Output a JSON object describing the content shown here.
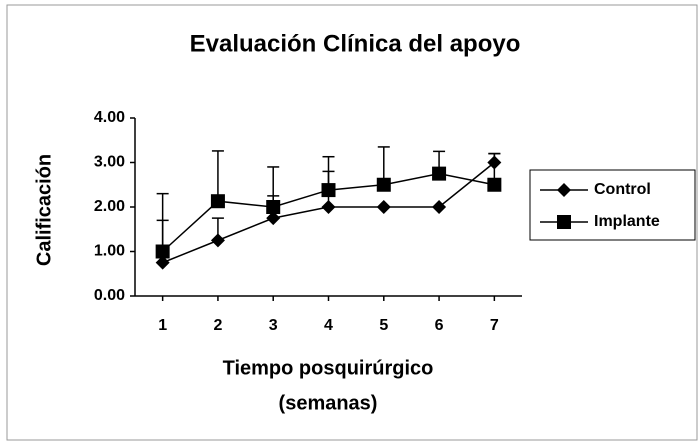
{
  "chart_data": {
    "type": "line",
    "title": "Evaluación Clínica del apoyo",
    "y_label": "Calificación",
    "x_label": [
      "Tiempo posquirúrgico",
      "(semanas)"
    ],
    "categories": [
      "1",
      "2",
      "3",
      "4",
      "5",
      "6",
      "7"
    ],
    "series": [
      {
        "name": "Control",
        "color": "#000000",
        "marker": "diamond",
        "values": [
          0.75,
          1.25,
          1.75,
          2.0,
          2.0,
          2.0,
          3.0
        ],
        "errors": [
          0.95,
          0.5,
          0.5,
          0.8,
          0,
          0,
          0.2
        ]
      },
      {
        "name": "Implante",
        "color": "#000000",
        "marker": "square",
        "values": [
          1.0,
          2.13,
          2.0,
          2.38,
          2.5,
          2.75,
          2.5
        ],
        "errors": [
          1.3,
          1.13,
          0.9,
          0.75,
          0.85,
          0.5,
          0.7
        ]
      }
    ],
    "ylim": [
      0,
      4
    ],
    "yticks": [
      {
        "value": 0,
        "label": "0.00"
      },
      {
        "value": 1,
        "label": "1.00"
      },
      {
        "value": 2,
        "label": "2.00"
      },
      {
        "value": 3,
        "label": "3.00"
      },
      {
        "value": 4,
        "label": "4.00"
      }
    ],
    "legend": "right"
  }
}
